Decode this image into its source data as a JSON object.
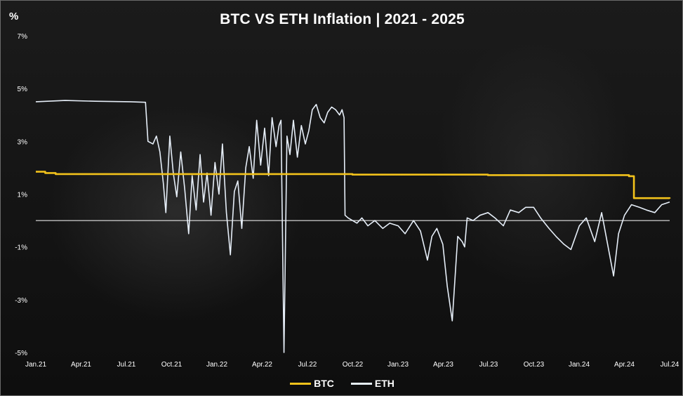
{
  "colors": {
    "btc": "#F2C21B",
    "eth": "#E6EEF8",
    "axis": "#FFFFFF",
    "background": "#141414"
  },
  "chart_data": {
    "type": "line",
    "title": "BTC VS ETH Inflation | 2021 - 2025",
    "ylabel": "%",
    "xlabel": "",
    "y_ticks": [
      "7%",
      "5%",
      "3%",
      "1%",
      "-1%",
      "-3%",
      "-5%"
    ],
    "x_ticks": [
      "Jan.21",
      "Apr.21",
      "Jul.21",
      "Oct.21",
      "Jan.22",
      "Apr.22",
      "Jul.22",
      "Oct.22",
      "Jan.23",
      "Apr.23",
      "Jul.23",
      "Oct.23",
      "Jan.24",
      "Apr.24",
      "Jul.24"
    ],
    "ylim": [
      -5,
      7
    ],
    "xlim": [
      "2021-01-01",
      "2024-07-01"
    ],
    "grid": false,
    "legend": "bottom-center",
    "series": [
      {
        "name": "BTC",
        "x": [
          "2021-01-01",
          "2021-01-20",
          "2021-02-10",
          "2022-10-01",
          "2023-07-01",
          "2024-04-10",
          "2024-04-20",
          "2024-07-01"
        ],
        "y": [
          1.85,
          1.8,
          1.76,
          1.74,
          1.72,
          1.68,
          0.85,
          0.83
        ]
      },
      {
        "name": "ETH",
        "x": [
          "2021-01-01",
          "2021-03-01",
          "2021-05-01",
          "2021-07-10",
          "2021-08-10",
          "2021-08-15",
          "2021-08-25",
          "2021-09-01",
          "2021-09-08",
          "2021-09-15",
          "2021-09-20",
          "2021-09-28",
          "2021-10-05",
          "2021-10-12",
          "2021-10-20",
          "2021-10-28",
          "2021-11-05",
          "2021-11-12",
          "2021-11-20",
          "2021-11-28",
          "2021-12-05",
          "2021-12-12",
          "2021-12-20",
          "2021-12-28",
          "2022-01-05",
          "2022-01-12",
          "2022-01-20",
          "2022-01-28",
          "2022-02-05",
          "2022-02-12",
          "2022-02-20",
          "2022-02-28",
          "2022-03-07",
          "2022-03-15",
          "2022-03-22",
          "2022-03-30",
          "2022-04-07",
          "2022-04-15",
          "2022-04-22",
          "2022-04-30",
          "2022-05-06",
          "2022-05-10",
          "2022-05-16",
          "2022-05-22",
          "2022-05-28",
          "2022-06-04",
          "2022-06-12",
          "2022-06-20",
          "2022-06-28",
          "2022-07-05",
          "2022-07-12",
          "2022-07-20",
          "2022-07-28",
          "2022-08-05",
          "2022-08-12",
          "2022-08-20",
          "2022-08-28",
          "2022-09-05",
          "2022-09-10",
          "2022-09-14",
          "2022-09-16",
          "2022-09-22",
          "2022-10-01",
          "2022-10-10",
          "2022-10-20",
          "2022-11-01",
          "2022-11-15",
          "2022-12-01",
          "2022-12-15",
          "2023-01-01",
          "2023-01-15",
          "2023-02-01",
          "2023-02-15",
          "2023-03-01",
          "2023-03-10",
          "2023-03-20",
          "2023-04-01",
          "2023-04-10",
          "2023-04-20",
          "2023-05-01",
          "2023-05-10",
          "2023-05-15",
          "2023-05-20",
          "2023-06-01",
          "2023-06-15",
          "2023-07-01",
          "2023-07-15",
          "2023-08-01",
          "2023-08-15",
          "2023-09-01",
          "2023-09-15",
          "2023-10-01",
          "2023-10-15",
          "2023-11-01",
          "2023-11-15",
          "2023-12-01",
          "2023-12-15",
          "2024-01-01",
          "2024-01-15",
          "2024-02-01",
          "2024-02-15",
          "2024-03-01",
          "2024-03-10",
          "2024-03-20",
          "2024-04-01",
          "2024-04-15",
          "2024-05-01",
          "2024-05-15",
          "2024-06-01",
          "2024-06-15",
          "2024-07-01"
        ],
        "y": [
          4.5,
          4.55,
          4.52,
          4.5,
          4.48,
          3.0,
          2.9,
          3.2,
          2.6,
          1.4,
          0.3,
          3.2,
          1.8,
          0.9,
          2.6,
          1.2,
          -0.5,
          1.7,
          0.4,
          2.5,
          0.7,
          1.8,
          0.2,
          2.2,
          1.0,
          2.9,
          0.3,
          -1.3,
          1.1,
          1.5,
          -0.3,
          2.0,
          2.8,
          1.6,
          3.8,
          2.1,
          3.5,
          1.7,
          3.9,
          2.8,
          3.6,
          3.8,
          -5.0,
          3.2,
          2.5,
          3.8,
          2.4,
          3.6,
          2.9,
          3.4,
          4.2,
          4.4,
          3.9,
          3.7,
          4.1,
          4.3,
          4.2,
          4.0,
          4.2,
          3.9,
          0.2,
          0.1,
          0.0,
          -0.1,
          0.1,
          -0.2,
          0.0,
          -0.3,
          -0.1,
          -0.2,
          -0.5,
          0.0,
          -0.4,
          -1.5,
          -0.6,
          -0.3,
          -0.9,
          -2.5,
          -3.8,
          -0.6,
          -0.8,
          -1.0,
          0.1,
          0.0,
          0.2,
          0.3,
          0.1,
          -0.2,
          0.4,
          0.3,
          0.5,
          0.5,
          0.1,
          -0.3,
          -0.6,
          -0.9,
          -1.1,
          -0.2,
          0.1,
          -0.8,
          0.3,
          -1.2,
          -2.1,
          -0.5,
          0.2,
          0.6,
          0.5,
          0.4,
          0.3,
          0.6,
          0.7
        ]
      }
    ]
  }
}
